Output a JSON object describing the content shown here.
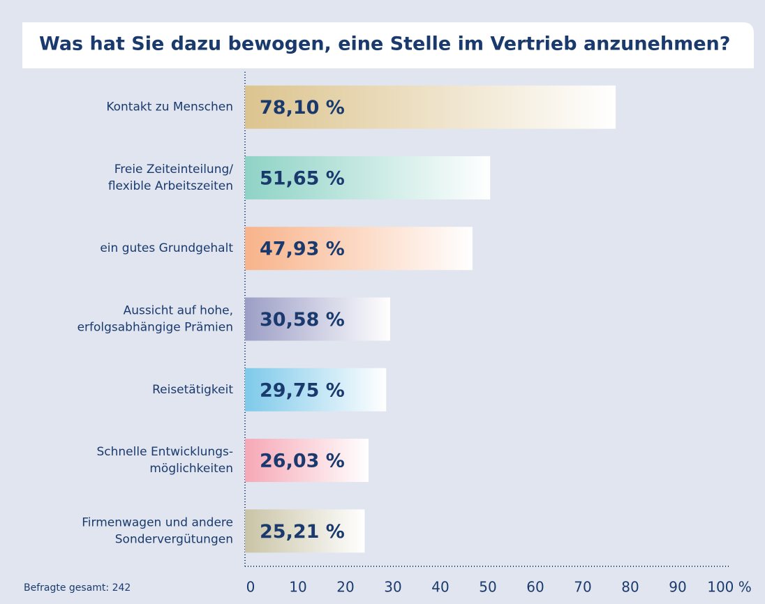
{
  "chart_data": {
    "type": "bar",
    "orientation": "horizontal",
    "title": "Was hat Sie dazu bewogen, eine Stelle im Vertrieb anzunehmen?",
    "categories": [
      [
        "Kontakt zu Menschen"
      ],
      [
        "Freie Zeiteinteilung/",
        "flexible Arbeitszeiten"
      ],
      [
        "ein gutes Grundgehalt"
      ],
      [
        "Aussicht auf hohe,",
        "erfolgsabhängige Prämien"
      ],
      [
        "Reisetätigkeit"
      ],
      [
        "Schnelle Entwicklungs-",
        "möglichkeiten"
      ],
      [
        "Firmenwagen und andere",
        "Sondervergütungen"
      ]
    ],
    "values": [
      78.1,
      51.65,
      47.93,
      30.58,
      29.75,
      26.03,
      25.21
    ],
    "value_labels": [
      "78,10 %",
      "51,65 %",
      "47,93 %",
      "30,58 %",
      "29,75 %",
      "26,03 %",
      "25,21 %"
    ],
    "colors": [
      "#dcc48f",
      "#8fd3c6",
      "#f8b38a",
      "#9c9ec6",
      "#7ec9ea",
      "#f6a8b6",
      "#c9c4a6"
    ],
    "xlim": [
      0,
      100
    ],
    "xticks": [
      0,
      10,
      20,
      30,
      40,
      50,
      60,
      70,
      80,
      90,
      {
        "value": 100,
        "label": "100 %"
      }
    ],
    "footnote": "Befragte gesamt: 242"
  }
}
